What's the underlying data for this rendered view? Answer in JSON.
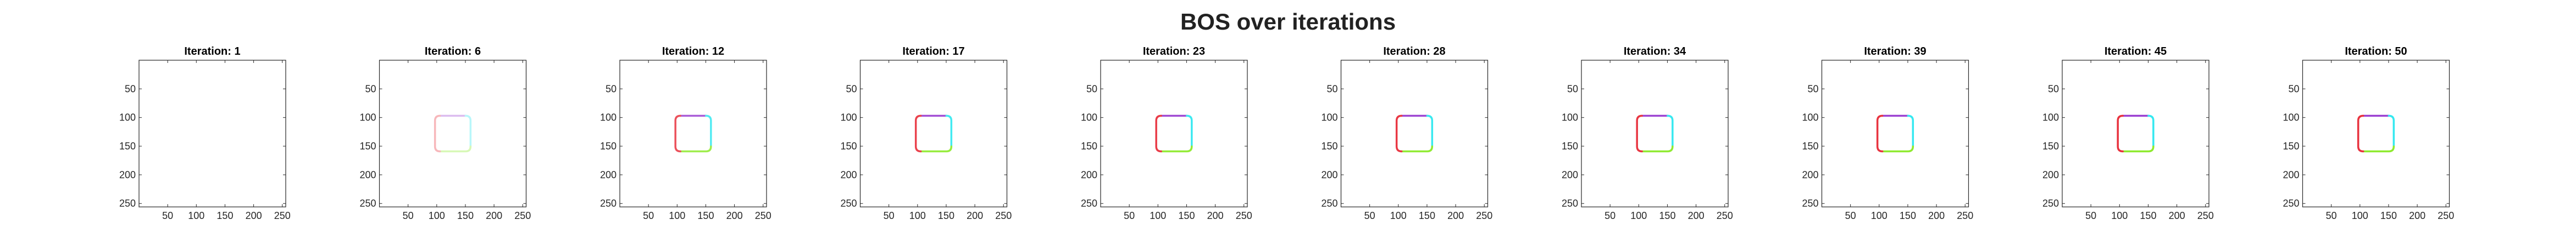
{
  "figure": {
    "title": "BOS over iterations"
  },
  "chart_data": {
    "type": "image",
    "title": "BOS over iterations",
    "panel_count": 10,
    "axis": {
      "xlim": [
        0,
        256
      ],
      "ylim": [
        0,
        256
      ],
      "y_direction": "reversed",
      "xticks": [
        50,
        100,
        150,
        200,
        250
      ],
      "yticks": [
        50,
        100,
        150,
        200,
        250
      ],
      "grid": false
    },
    "shape": {
      "description": "rounded square outline with colored edges",
      "x_range": [
        97,
        159
      ],
      "y_range": [
        97,
        159
      ],
      "edge_colors": {
        "top": "#9a3fd1",
        "right": "#33e8f0",
        "bottom": "#8eea2e",
        "left": "#e8323e"
      }
    },
    "panels": [
      {
        "title": "Iteration: 1",
        "iteration": 1,
        "intensity": 0.0
      },
      {
        "title": "Iteration: 6",
        "iteration": 6,
        "intensity": 0.35
      },
      {
        "title": "Iteration: 12",
        "iteration": 12,
        "intensity": 0.85
      },
      {
        "title": "Iteration: 17",
        "iteration": 17,
        "intensity": 0.92
      },
      {
        "title": "Iteration: 23",
        "iteration": 23,
        "intensity": 0.95
      },
      {
        "title": "Iteration: 28",
        "iteration": 28,
        "intensity": 0.97
      },
      {
        "title": "Iteration: 34",
        "iteration": 34,
        "intensity": 0.98
      },
      {
        "title": "Iteration: 39",
        "iteration": 39,
        "intensity": 0.99
      },
      {
        "title": "Iteration: 45",
        "iteration": 45,
        "intensity": 1.0
      },
      {
        "title": "Iteration: 50",
        "iteration": 50,
        "intensity": 1.0
      }
    ]
  }
}
